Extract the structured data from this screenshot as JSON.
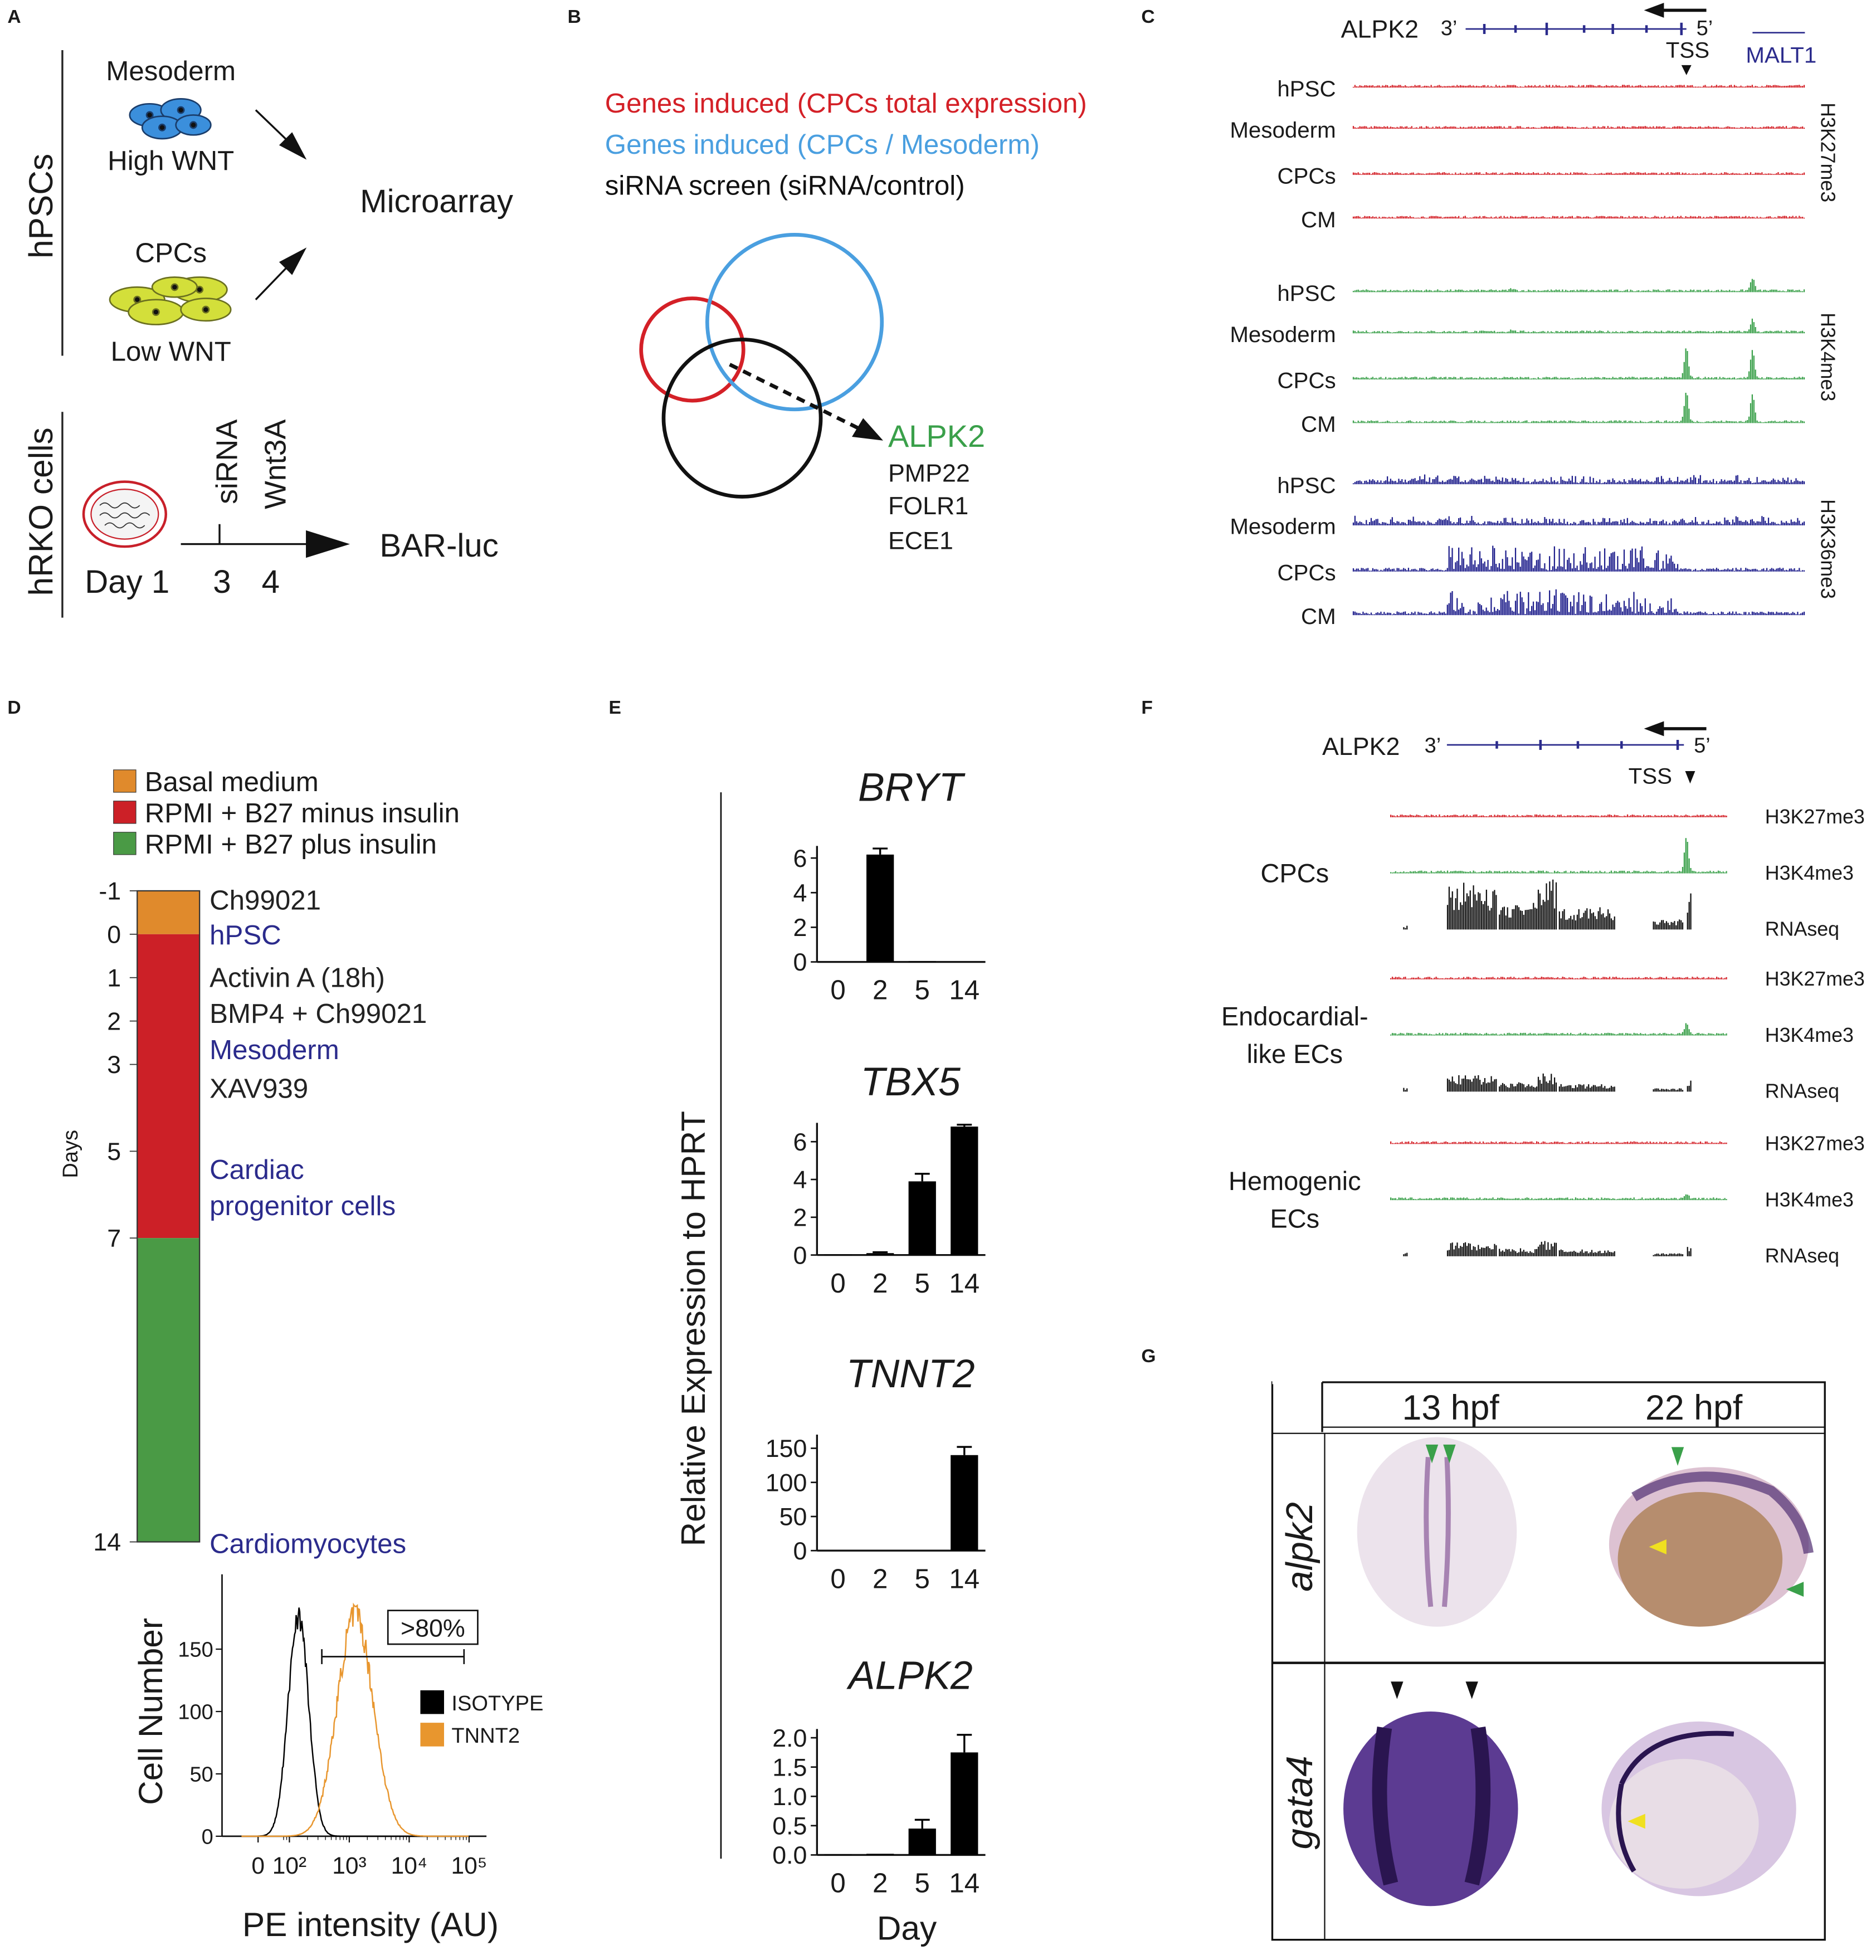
{
  "panel_labels": [
    "A",
    "B",
    "C",
    "D",
    "E",
    "F",
    "G"
  ],
  "panel_a": {
    "group1_label": "hPSCs",
    "cell1": "Mesoderm",
    "cell1_condition": "High WNT",
    "cell2": "CPCs",
    "cell2_condition": "Low WNT",
    "readout1": "Microarray",
    "group2_label": "hRKO cells",
    "treatment1": "siRNA",
    "treatment2": "Wnt3A",
    "timeline_days": [
      "Day 1",
      "3",
      "4"
    ],
    "readout2": "BAR-luc"
  },
  "panel_b": {
    "legend": [
      {
        "text": "Genes induced (CPCs total expression)",
        "color": "#d42027"
      },
      {
        "text": "Genes induced (CPCs / Mesoderm)",
        "color": "#4a9fe0"
      },
      {
        "text": "siRNA screen (siRNA/control)",
        "color": "#111111"
      }
    ],
    "hit": "ALPK2",
    "hit_color": "#3aa04a",
    "others": [
      "PMP22",
      "FOLR1",
      "ECE1"
    ]
  },
  "panel_c": {
    "gene": "ALPK2",
    "end3": "3’",
    "end5": "5’",
    "tss": "TSS",
    "neighbor": "MALT1",
    "marks": [
      {
        "name": "H3K27me3",
        "color": "#d42027",
        "samples": [
          "hPSC",
          "Mesoderm",
          "CPCs",
          "CM"
        ]
      },
      {
        "name": "H3K4me3",
        "color": "#3aa04a",
        "samples": [
          "hPSC",
          "Mesoderm",
          "CPCs",
          "CM"
        ]
      },
      {
        "name": "H3K36me3",
        "color": "#1f1f8c",
        "samples": [
          "hPSC",
          "Mesoderm",
          "CPCs",
          "CM"
        ]
      }
    ]
  },
  "panel_d": {
    "legend": [
      {
        "name": "Basal medium",
        "color": "#e08a2c"
      },
      {
        "name": "RPMI + B27 minus insulin",
        "color": "#cc2027"
      },
      {
        "name": "RPMI + B27 plus insulin",
        "color": "#4a9a45"
      }
    ],
    "timeline": {
      "axis_label": "Days",
      "lim": [
        -1,
        14
      ],
      "ticks": [
        -1,
        0,
        1,
        2,
        3,
        5,
        7,
        14
      ],
      "segments": [
        {
          "from": -1,
          "to": 0
        },
        {
          "from": 0,
          "to": 7
        },
        {
          "from": 7,
          "to": 14
        }
      ],
      "annotations": [
        {
          "text": "Ch99021",
          "color": "#222222"
        },
        {
          "text": "hPSC",
          "color": "#2b2b8c"
        },
        {
          "text": "Activin A (18h)",
          "color": "#222222"
        },
        {
          "text": "BMP4 + Ch99021",
          "color": "#222222"
        },
        {
          "text": "Mesoderm",
          "color": "#2b2b8c"
        },
        {
          "text": "XAV939",
          "color": "#222222"
        },
        {
          "text": "Cardiac",
          "color": "#2b2b8c"
        },
        {
          "text": "progenitor cells",
          "color": "#2b2b8c"
        },
        {
          "text": "Cardiomyocytes",
          "color": "#2b2b8c"
        }
      ]
    },
    "histogram": {
      "ylabel": "Cell Number",
      "xlabel": "PE intensity (AU)",
      "ylim": [
        0,
        210
      ],
      "yticks": [
        0,
        50,
        100,
        150
      ],
      "xlim": [
        7.5,
        195000
      ],
      "log_x": true,
      "xticks": [
        0,
        {
          "value": 100,
          "label": "10²"
        },
        {
          "value": 1000,
          "label": "10³"
        },
        {
          "value": 10000,
          "label": "10⁴"
        },
        {
          "value": 100000,
          "label": "10⁵"
        }
      ],
      "gate_label": ">80%",
      "series": [
        {
          "name": "ISOTYPE",
          "color": "#000000"
        },
        {
          "name": "TNNT2",
          "color": "#e8962e"
        }
      ]
    }
  },
  "panel_e": {
    "ylabel": "Relative Expression to HPRT",
    "xlabel": "Day"
  },
  "chart_data": [
    {
      "type": "bar",
      "title": "BRYT",
      "categories": [
        "0",
        "2",
        "5",
        "14"
      ],
      "values": [
        0,
        6.2,
        0.05,
        0
      ],
      "errors": [
        0,
        0.35,
        0,
        0
      ],
      "ylim": [
        0,
        6.7
      ],
      "yticks": [
        0,
        2,
        4,
        6
      ],
      "color": "#000000"
    },
    {
      "type": "bar",
      "title": "TBX5",
      "categories": [
        "0",
        "2",
        "5",
        "14"
      ],
      "values": [
        0.02,
        0.1,
        3.9,
        6.8
      ],
      "errors": [
        0,
        0.05,
        0.4,
        0.1
      ],
      "ylim": [
        0,
        7
      ],
      "yticks": [
        0,
        2,
        4,
        6
      ],
      "color": "#000000"
    },
    {
      "type": "bar",
      "title": "TNNT2",
      "categories": [
        "0",
        "2",
        "5",
        "14"
      ],
      "values": [
        0,
        0,
        0,
        140
      ],
      "errors": [
        0,
        0,
        0,
        12
      ],
      "ylim": [
        0,
        170
      ],
      "yticks": [
        0,
        50,
        100,
        150
      ],
      "color": "#000000"
    },
    {
      "type": "bar",
      "title": "ALPK2",
      "categories": [
        "0",
        "2",
        "5",
        "14"
      ],
      "values": [
        0.01,
        0.02,
        0.45,
        1.75
      ],
      "errors": [
        0,
        0,
        0.15,
        0.3
      ],
      "ylim": [
        0,
        2.15
      ],
      "yticks": [
        {
          "value": 0,
          "label": "0.0"
        },
        0.5,
        {
          "value": 1,
          "label": "1.0"
        },
        1.5,
        {
          "value": 2,
          "label": "2.0"
        }
      ],
      "color": "#000000"
    }
  ],
  "panel_f": {
    "gene": "ALPK2",
    "end3": "3’",
    "end5": "5’",
    "tss": "TSS",
    "groups": [
      {
        "name_lines": [
          "CPCs"
        ],
        "tracks": [
          {
            "name": "H3K27me3",
            "color": "#d42027"
          },
          {
            "name": "H3K4me3",
            "color": "#3aa04a"
          },
          {
            "name": "RNAseq",
            "color": "#111111"
          }
        ]
      },
      {
        "name_lines": [
          "Endocardial-",
          "like ECs"
        ],
        "tracks": [
          {
            "name": "H3K27me3",
            "color": "#d42027"
          },
          {
            "name": "H3K4me3",
            "color": "#3aa04a"
          },
          {
            "name": "RNAseq",
            "color": "#111111"
          }
        ]
      },
      {
        "name_lines": [
          "Hemogenic",
          "ECs"
        ],
        "tracks": [
          {
            "name": "H3K27me3",
            "color": "#d42027"
          },
          {
            "name": "H3K4me3",
            "color": "#3aa04a"
          },
          {
            "name": "RNAseq",
            "color": "#111111"
          }
        ]
      }
    ]
  },
  "panel_g": {
    "columns": [
      "13 hpf",
      "22 hpf"
    ],
    "rows": [
      "alpk2",
      "gata4"
    ]
  }
}
